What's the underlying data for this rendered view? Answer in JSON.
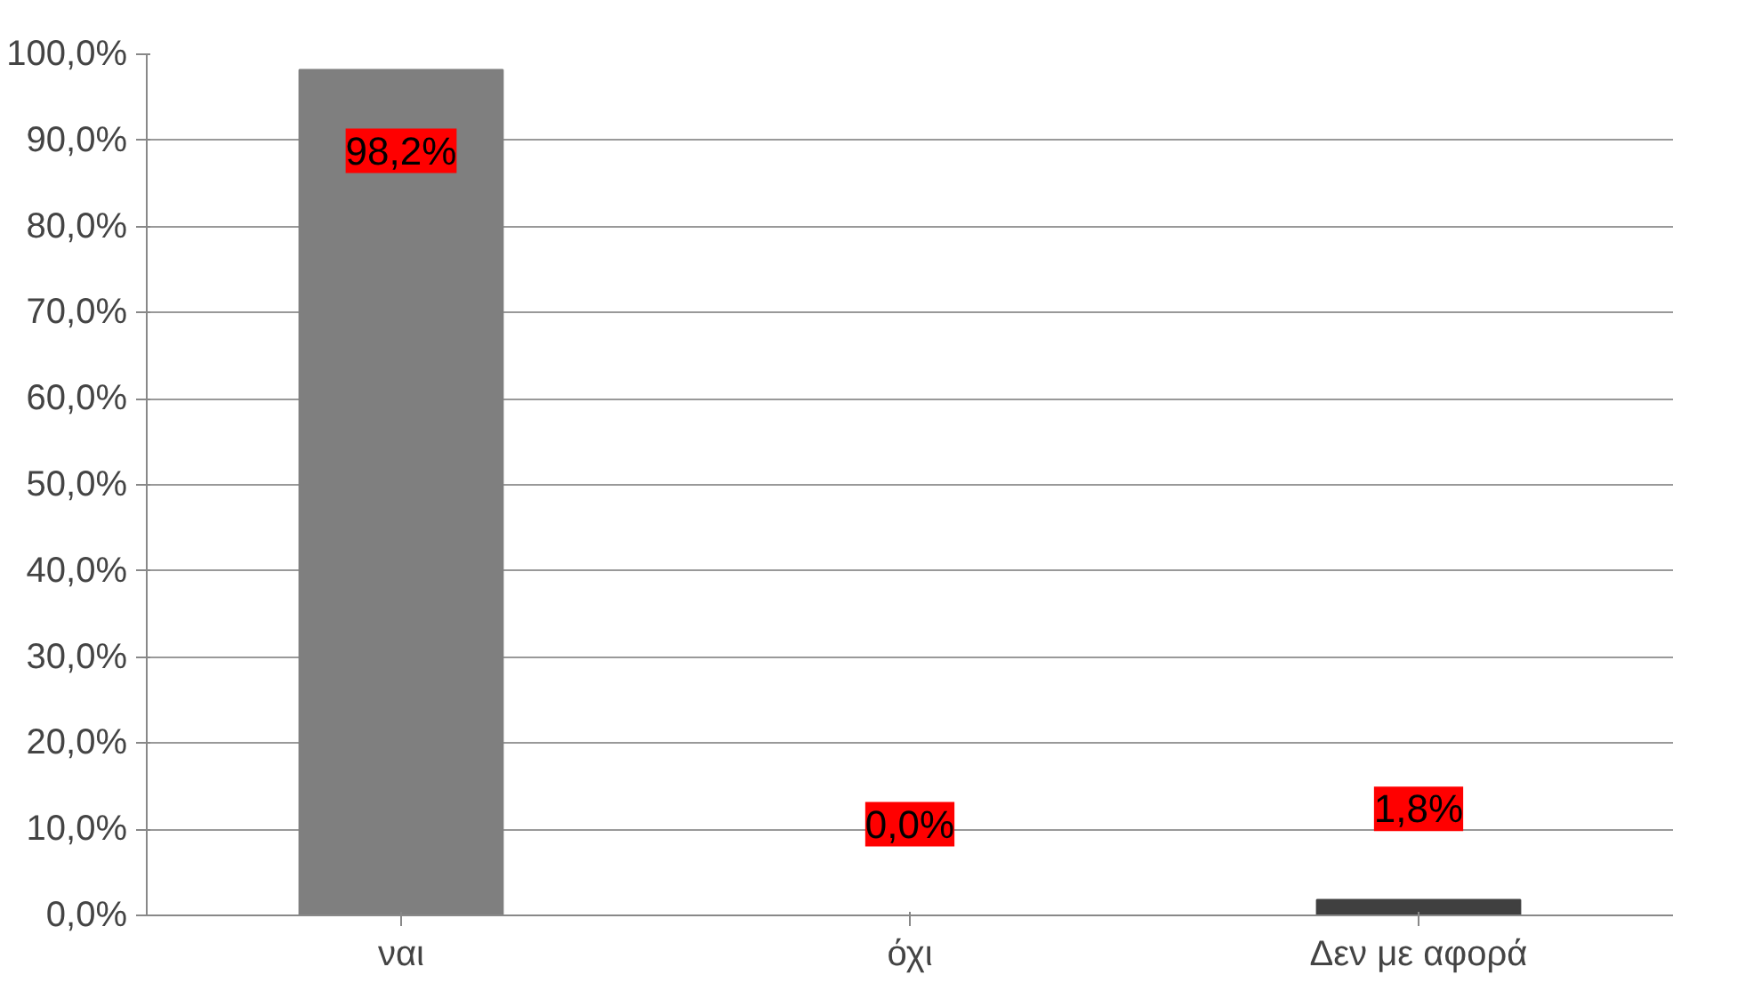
{
  "chart_data": {
    "type": "bar",
    "categories": [
      "ναι",
      "όχι",
      "Δεν με αφορά"
    ],
    "values": [
      98.2,
      0.0,
      1.8
    ],
    "colors": [
      "#7f7f7f",
      "#a6a6a6",
      "#404040"
    ],
    "value_labels": [
      "98,2%",
      "0,0%",
      "1,8%"
    ],
    "ylim": [
      0,
      100
    ],
    "yticks": [
      {
        "value": 0,
        "label": "0,0%"
      },
      {
        "value": 10,
        "label": "10,0%"
      },
      {
        "value": 20,
        "label": "20,0%"
      },
      {
        "value": 30,
        "label": "30,0%"
      },
      {
        "value": 40,
        "label": "40,0%"
      },
      {
        "value": 50,
        "label": "50,0%"
      },
      {
        "value": 60,
        "label": "60,0%"
      },
      {
        "value": 70,
        "label": "70,0%"
      },
      {
        "value": 80,
        "label": "80,0%"
      },
      {
        "value": 90,
        "label": "90,0%"
      },
      {
        "value": 100,
        "label": "100,0%"
      }
    ],
    "grid": "y"
  }
}
